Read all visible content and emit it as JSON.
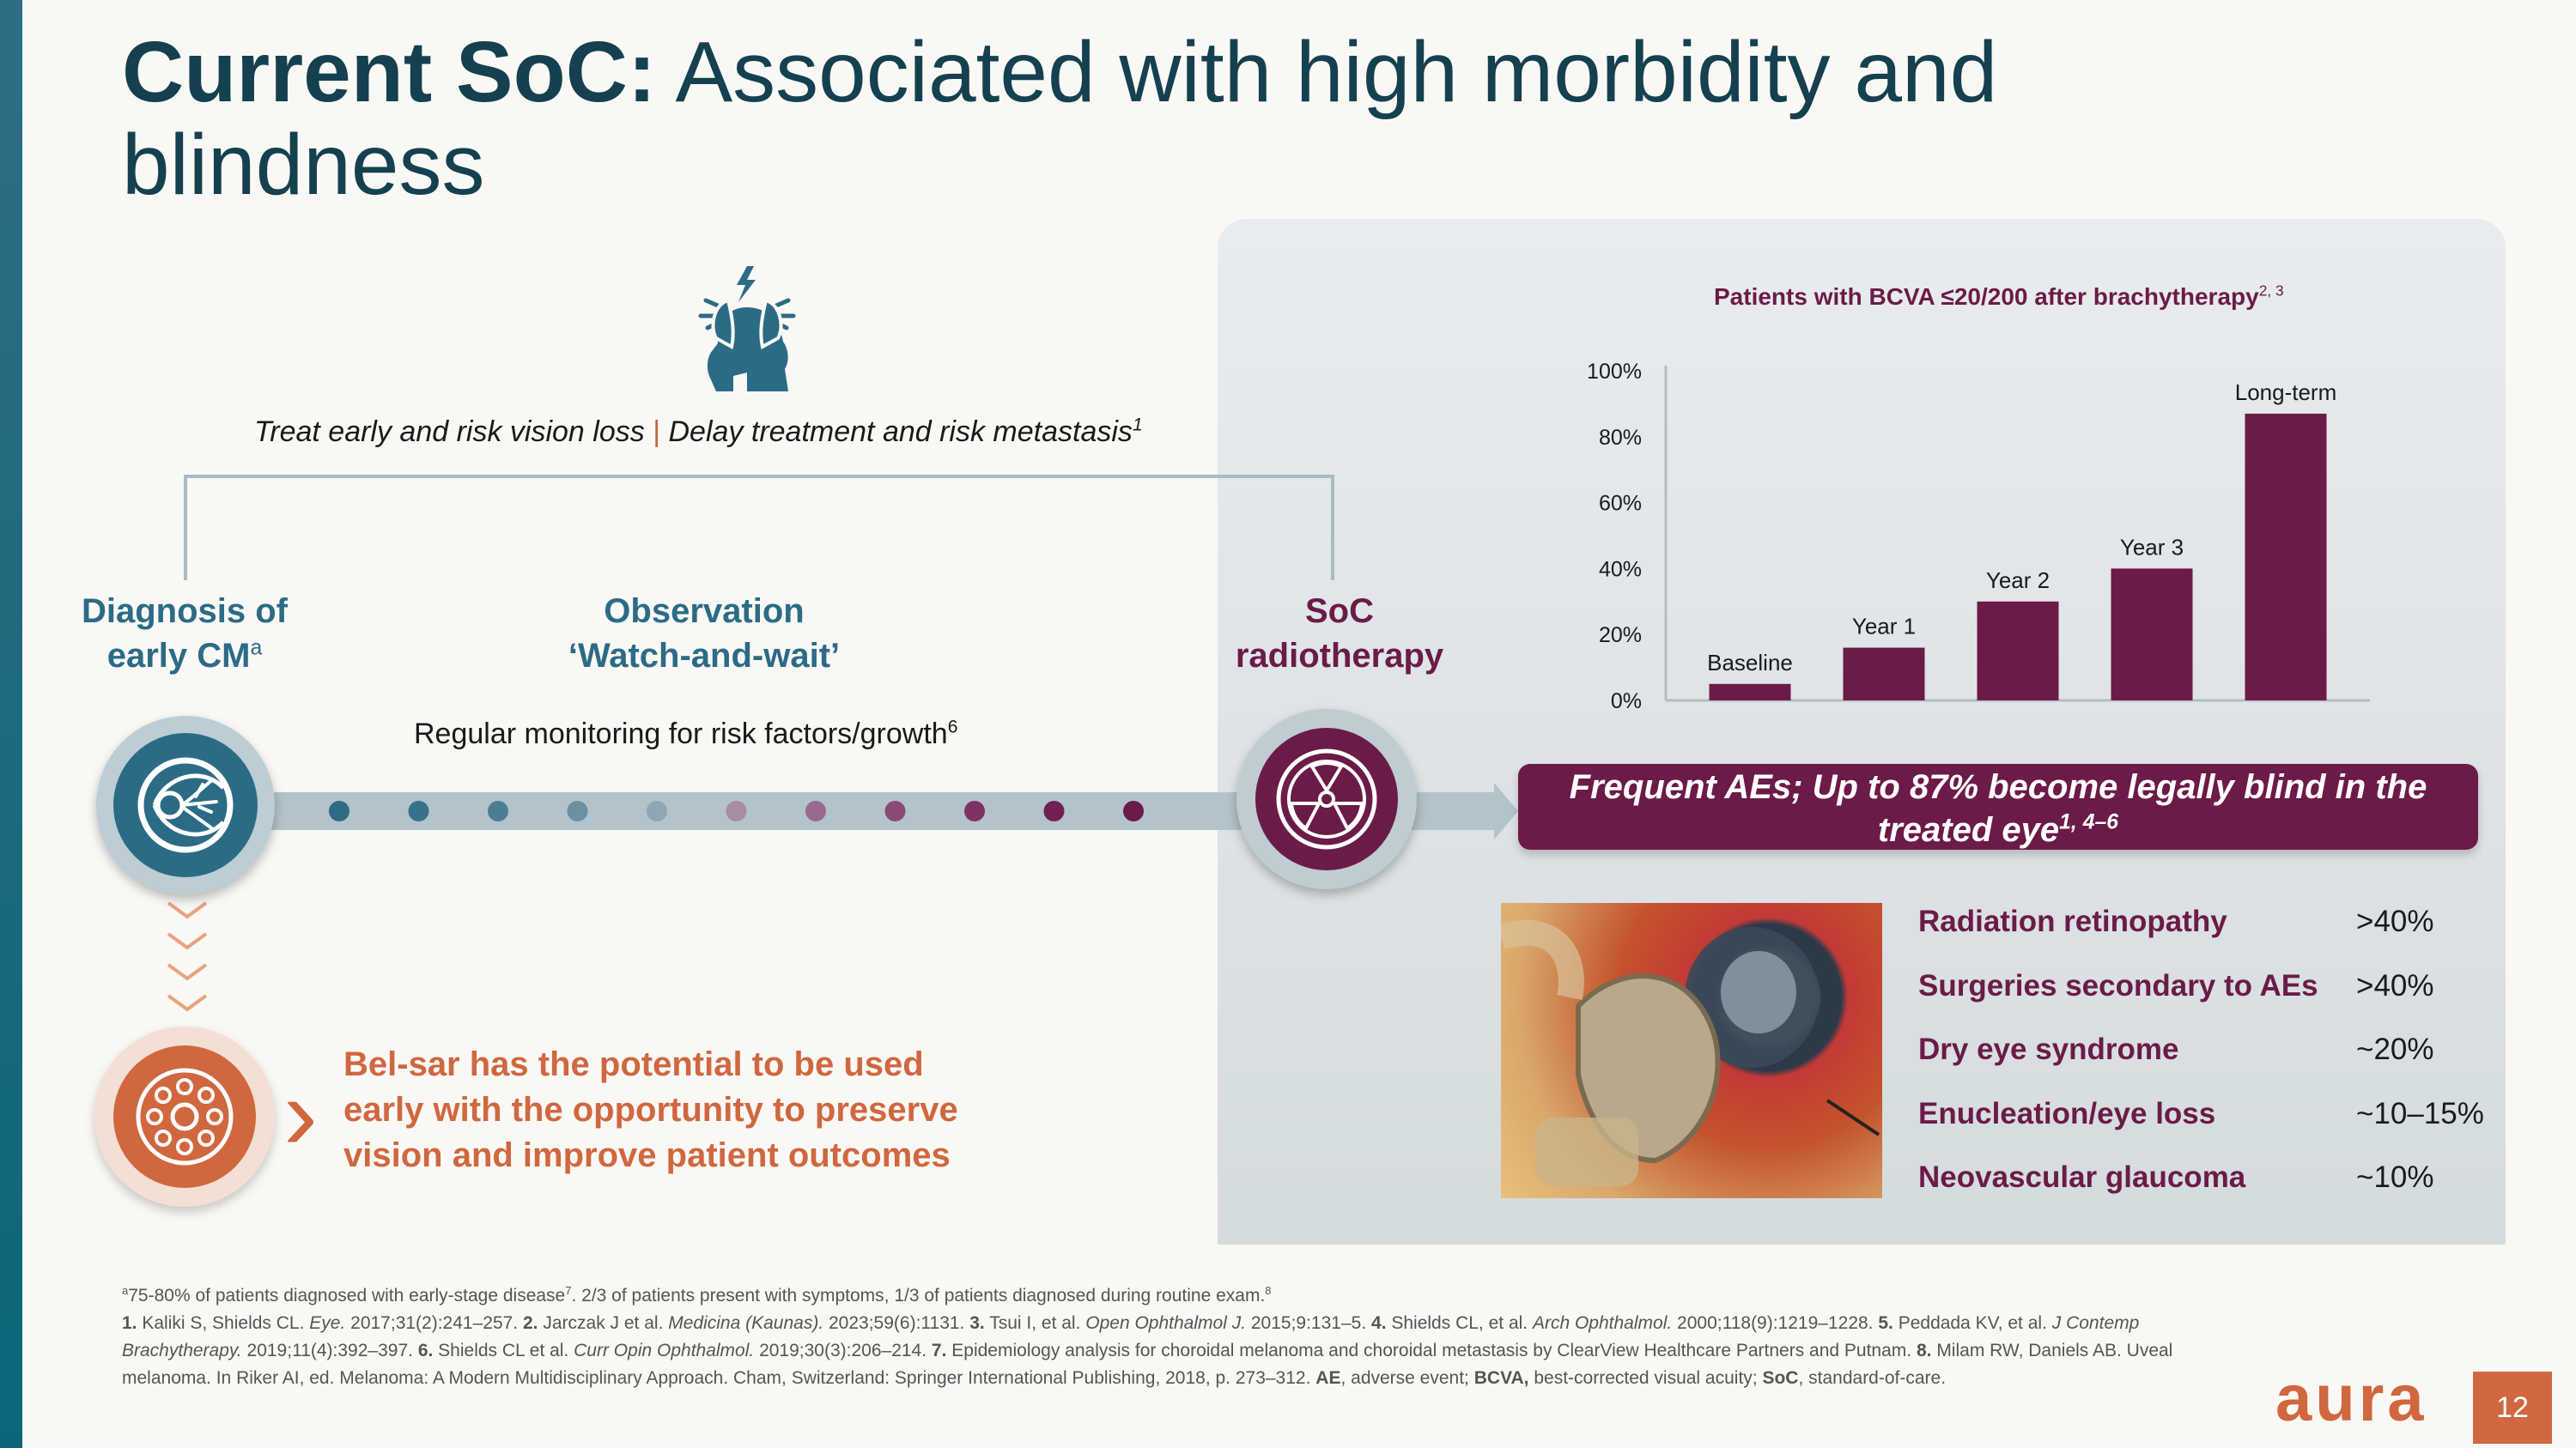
{
  "title": {
    "bold": "Current SoC:",
    "rest": " Associated with high morbidity and blindness"
  },
  "decision": {
    "icon": "stressed-head-icon",
    "option_a": "Treat early and risk vision loss",
    "separator": "|",
    "option_b": "Delay treatment and risk metastasis",
    "ref": "1"
  },
  "stages": {
    "diagnosis_line1": "Diagnosis of",
    "diagnosis_line2": "early CM",
    "diagnosis_sup": "a",
    "observation_line1": "Observation",
    "observation_line2": "‘Watch-and-wait’",
    "soc_line1": "SoC",
    "soc_line2": "radiotherapy"
  },
  "monitoring": {
    "text": "Regular monitoring for risk factors/growth",
    "ref": "6"
  },
  "timeline_dot_colors": [
    "#2f6b84",
    "#38728a",
    "#4b7d93",
    "#6c8fa1",
    "#8ea7b3",
    "#a78da3",
    "#9a6a8b",
    "#8b4a75",
    "#7e3264",
    "#711f55",
    "#6b1b47"
  ],
  "ae_banner": {
    "line1": "Frequent AEs; Up to 87% become legally blind in the",
    "line2": "treated eye",
    "ref": "1, 4–6"
  },
  "adverse_events": [
    {
      "label": "Radiation retinopathy",
      "value": ">40%"
    },
    {
      "label": "Surgeries secondary to AEs",
      "value": ">40%"
    },
    {
      "label": "Dry eye syndrome",
      "value": "~20%"
    },
    {
      "label": "Enucleation/eye loss",
      "value": "~10–15%"
    },
    {
      "label": "Neovascular glaucoma",
      "value": "~10%"
    }
  ],
  "belsar": {
    "line1": "Bel-sar has the potential to be used",
    "line2": "early with the opportunity to preserve",
    "line3": "vision and improve patient outcomes"
  },
  "chart_data": {
    "type": "bar",
    "title": "Patients with BCVA ≤20/200 after brachytherapy",
    "title_ref": "2, 3",
    "categories": [
      "Baseline",
      "Year 1",
      "Year 2",
      "Year 3",
      "Long-term"
    ],
    "values": [
      5,
      16,
      30,
      40,
      87
    ],
    "ylim": [
      0,
      100
    ],
    "yticks": [
      "0%",
      "20%",
      "40%",
      "60%",
      "80%",
      "100%"
    ],
    "ytick_values": [
      0,
      20,
      40,
      60,
      80,
      100
    ],
    "xlabel": "",
    "ylabel": "",
    "bar_color": "#6b1b47"
  },
  "footnotes": {
    "note_a_sup": "a",
    "note_a": "75-80% of patients diagnosed with early-stage disease",
    "note_a_ref": "7",
    "note_a_rest": ". 2/3 of patients present with symptoms, 1/3 of patients diagnosed during routine exam.",
    "note_a_ref2": "8",
    "ref1": "1.",
    "ref1_text": " Kaliki S, Shields CL. ",
    "ref1_journal": "Eye.",
    "ref1_rest": " 2017;31(2):241–257.",
    "ref2": "2.",
    "ref2_text": " Jarczak J et al. ",
    "ref2_journal": "Medicina (Kaunas).",
    "ref2_rest": " 2023;59(6):1131.",
    "ref3": "3.",
    "ref3_text": " Tsui I, et al. ",
    "ref3_journal": "Open Ophthalmol J.",
    "ref3_rest": " 2015;9:131–5.",
    "ref4": "4.",
    "ref4_text": " Shields CL, et al. ",
    "ref4_journal": "Arch Ophthalmol.",
    "ref4_rest": " 2000;118(9):1219–1228.",
    "ref5": "5.",
    "ref5_text": " Peddada KV, et al. ",
    "ref5_journal": "J Contemp Brachytherapy.",
    "ref5_rest": " 2019;11(4):392–397.",
    "ref6": "6.",
    "ref6_text": " Shields CL et al. ",
    "ref6_journal": "Curr Opin Ophthalmol.",
    "ref6_rest": " 2019;30(3):206–214.",
    "ref7": "7.",
    "ref7_text": " Epidemiology analysis for choroidal melanoma and choroidal metastasis by ClearView Healthcare Partners and Putnam.",
    "ref8": "8.",
    "ref8_text": " Milam RW, Daniels AB. Uveal melanoma. In Riker AI, ed. Melanoma: A Modern Multidisciplinary Approach. Cham, Switzerland: Springer International Publishing, 2018, p. 273–312.",
    "abbr_ae": "AE",
    "abbr_ae_text": ", adverse event; ",
    "abbr_bcva": "BCVA,",
    "abbr_bcva_text": " best-corrected visual acuity; ",
    "abbr_soc": "SoC",
    "abbr_soc_text": ", standard-of-care."
  },
  "logo": "aura",
  "page_number": "12"
}
